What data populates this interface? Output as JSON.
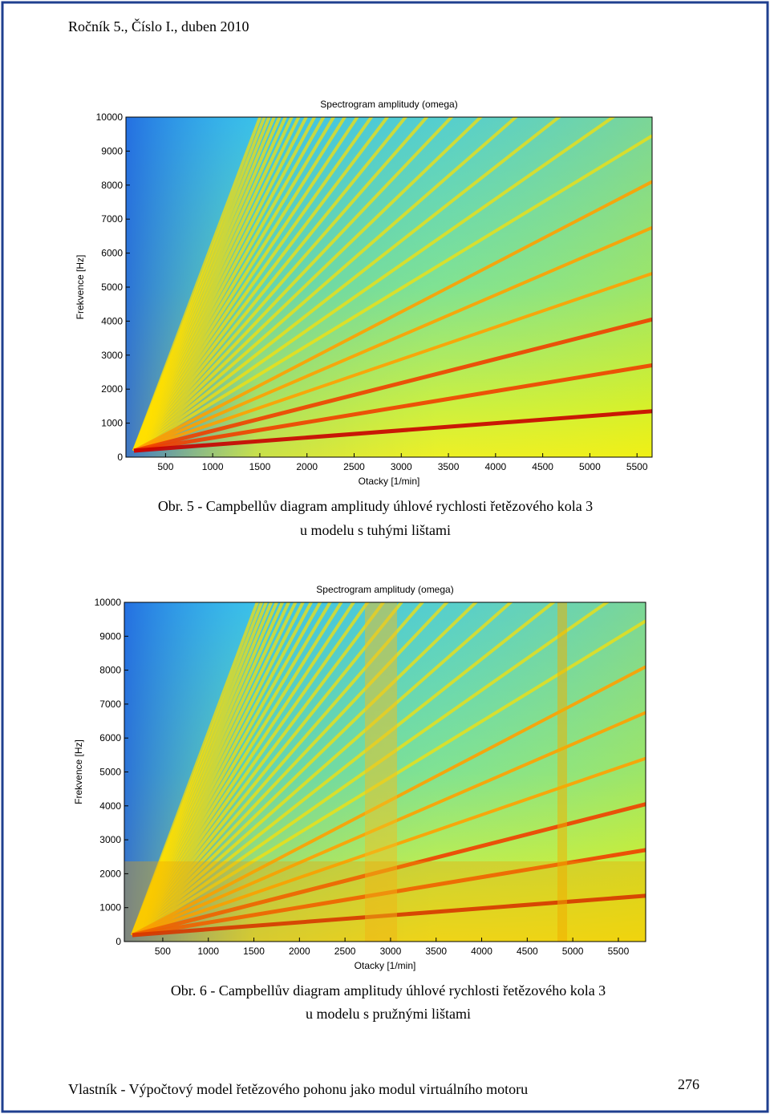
{
  "header": "Ročník 5., Číslo I., duben 2010",
  "figures": [
    {
      "title": "Spectrogram amplitudy (omega)",
      "xlabel": "Otacky [1/min]",
      "ylabel": "Frekvence [Hz]",
      "xlim": [
        80,
        5660
      ],
      "ylim": [
        0,
        10000
      ],
      "xticks": [
        500,
        1000,
        1500,
        2000,
        2500,
        3000,
        3500,
        4000,
        4500,
        5000,
        5500
      ],
      "yticks": [
        0,
        1000,
        2000,
        3000,
        4000,
        5000,
        6000,
        7000,
        8000,
        9000,
        10000
      ],
      "caption": [
        "Obr. 5 - Campbellův diagram amplitudy úhlové rychlosti řetězového kola 3",
        "u modelu s tuhými lištami"
      ]
    },
    {
      "title": "Spectrogram amplitudy (omega)",
      "xlabel": "Otacky [1/min]",
      "ylabel": "Frekvence [Hz]",
      "xlim": [
        78,
        5800
      ],
      "ylim": [
        0,
        10000
      ],
      "xticks": [
        500,
        1000,
        1500,
        2000,
        2500,
        3000,
        3500,
        4000,
        4500,
        5000,
        5500
      ],
      "yticks": [
        0,
        1000,
        2000,
        3000,
        4000,
        5000,
        6000,
        7000,
        8000,
        9000,
        10000
      ],
      "caption": [
        "Obr. 6 - Campbellův diagram amplitudy úhlové rychlosti řetězového kola 3",
        "u modelu s pružnými lištami"
      ]
    }
  ],
  "footer": "Vlastník - Výpočtový model řetězového pohonu jako modul virtuálního motoru",
  "page_number": "276"
}
